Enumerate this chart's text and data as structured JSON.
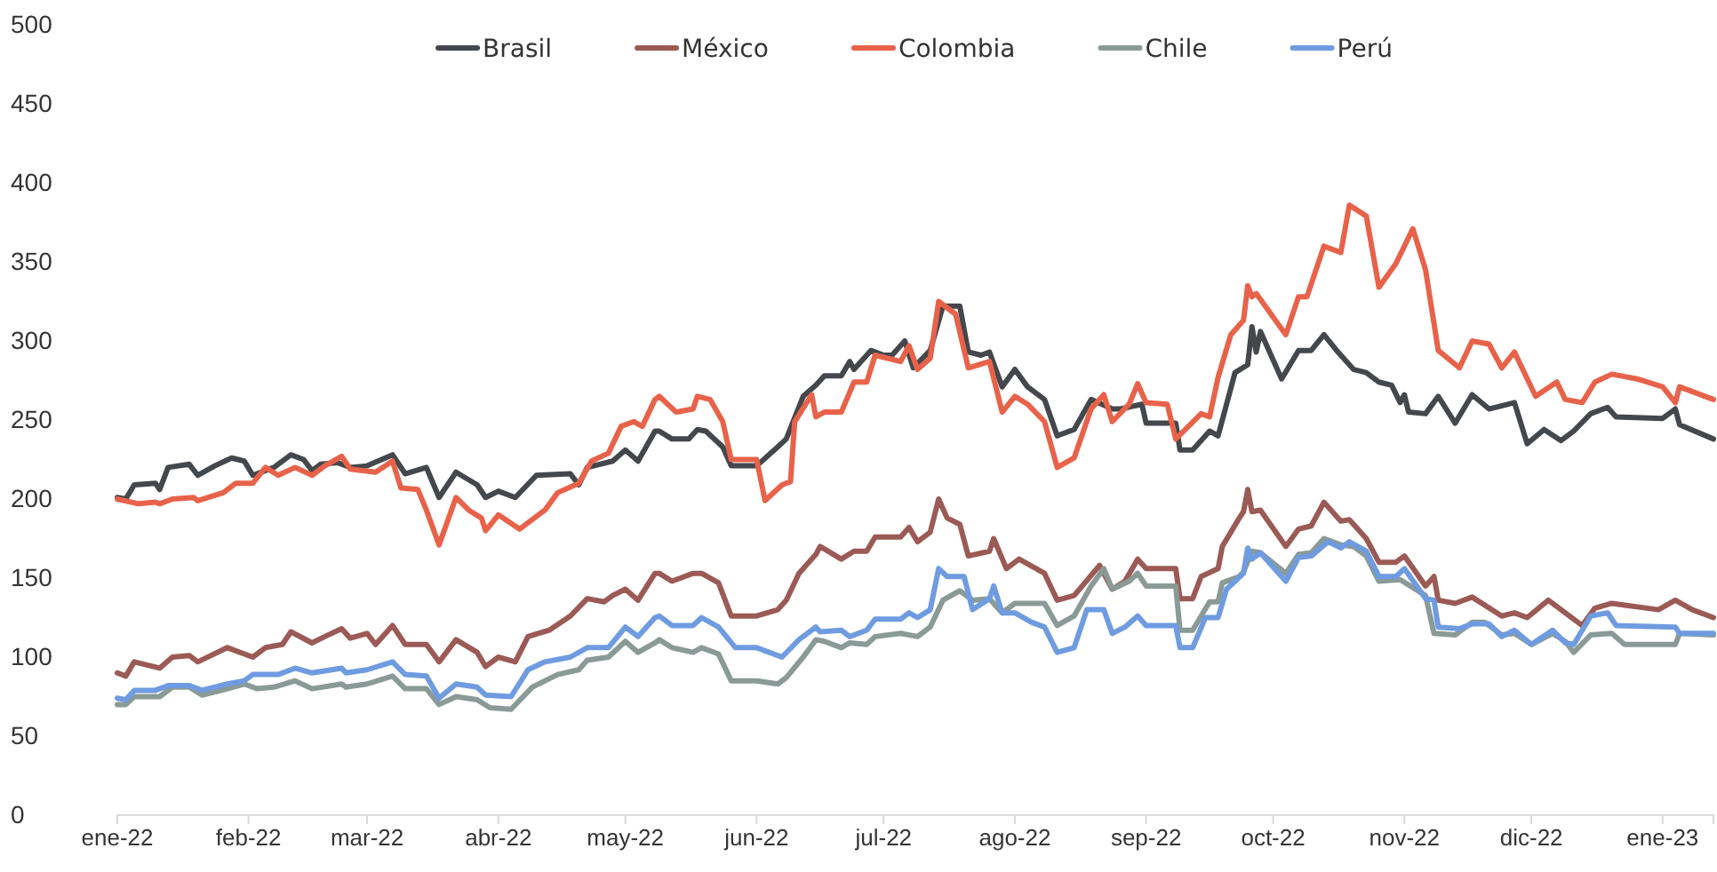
{
  "chart_data": {
    "type": "line",
    "legend": "top",
    "grid": false,
    "line_style": "solid",
    "marker": "none",
    "xlim": [
      "2022-01-01",
      "2023-01-13"
    ],
    "xticks": [
      {
        "value": "2022-01-01",
        "label": "ene-22"
      },
      {
        "value": "2022-02-01",
        "label": "feb-22"
      },
      {
        "value": "2022-03-01",
        "label": "mar-22"
      },
      {
        "value": "2022-04-01",
        "label": "abr-22"
      },
      {
        "value": "2022-05-01",
        "label": "may-22"
      },
      {
        "value": "2022-06-01",
        "label": "jun-22"
      },
      {
        "value": "2022-07-01",
        "label": "jul-22"
      },
      {
        "value": "2022-08-01",
        "label": "ago-22"
      },
      {
        "value": "2022-09-01",
        "label": "sep-22"
      },
      {
        "value": "2022-10-01",
        "label": "oct-22"
      },
      {
        "value": "2022-11-01",
        "label": "nov-22"
      },
      {
        "value": "2022-12-01",
        "label": "dic-22"
      },
      {
        "value": "2023-01-01",
        "label": "ene-23"
      }
    ],
    "ylim": [
      0,
      500
    ],
    "yticks": [
      0,
      50,
      100,
      150,
      200,
      250,
      300,
      350,
      400,
      450,
      500
    ],
    "series": [
      {
        "name": "Brasil",
        "color": "#44474b",
        "x": [
          "2022-01-01",
          "2022-01-03",
          "2022-01-05",
          "2022-01-10",
          "2022-01-11",
          "2022-01-13",
          "2022-01-18",
          "2022-01-20",
          "2022-01-24",
          "2022-01-28",
          "2022-01-31",
          "2022-02-02",
          "2022-02-07",
          "2022-02-11",
          "2022-02-14",
          "2022-02-16",
          "2022-02-18",
          "2022-02-22",
          "2022-02-25",
          "2022-03-01",
          "2022-03-07",
          "2022-03-10",
          "2022-03-15",
          "2022-03-18",
          "2022-03-22",
          "2022-03-27",
          "2022-03-29",
          "2022-04-01",
          "2022-04-05",
          "2022-04-10",
          "2022-04-18",
          "2022-04-20",
          "2022-04-22",
          "2022-04-28",
          "2022-05-01",
          "2022-05-04",
          "2022-05-08",
          "2022-05-09",
          "2022-05-12",
          "2022-05-16",
          "2022-05-18",
          "2022-05-20",
          "2022-05-24",
          "2022-05-26",
          "2022-06-01",
          "2022-06-06",
          "2022-06-08",
          "2022-06-12",
          "2022-06-15",
          "2022-06-17",
          "2022-06-21",
          "2022-06-23",
          "2022-06-24",
          "2022-06-28",
          "2022-07-01",
          "2022-07-03",
          "2022-07-06",
          "2022-07-08",
          "2022-07-12",
          "2022-07-15",
          "2022-07-19",
          "2022-07-21",
          "2022-07-24",
          "2022-07-26",
          "2022-07-29",
          "2022-08-01",
          "2022-08-04",
          "2022-08-08",
          "2022-08-11",
          "2022-08-15",
          "2022-08-19",
          "2022-08-24",
          "2022-08-26",
          "2022-08-31",
          "2022-09-01",
          "2022-09-08",
          "2022-09-09",
          "2022-09-12",
          "2022-09-16",
          "2022-09-18",
          "2022-09-22",
          "2022-09-25",
          "2022-09-26",
          "2022-09-27",
          "2022-09-28",
          "2022-10-03",
          "2022-10-07",
          "2022-10-10",
          "2022-10-13",
          "2022-10-16",
          "2022-10-20",
          "2022-10-23",
          "2022-10-26",
          "2022-10-29",
          "2022-10-31",
          "2022-11-01",
          "2022-11-02",
          "2022-11-06",
          "2022-11-09",
          "2022-11-13",
          "2022-11-17",
          "2022-11-21",
          "2022-11-27",
          "2022-11-30",
          "2022-12-04",
          "2022-12-08",
          "2022-12-11",
          "2022-12-15",
          "2022-12-19",
          "2022-12-21",
          "2023-01-01",
          "2023-01-04",
          "2023-01-05",
          "2023-01-13"
        ],
        "values": [
          201,
          200,
          209,
          210,
          206,
          220,
          222,
          215,
          221,
          226,
          224,
          215,
          220,
          228,
          225,
          218,
          222,
          223,
          220,
          221,
          228,
          216,
          220,
          201,
          217,
          209,
          201,
          205,
          201,
          215,
          216,
          209,
          220,
          224,
          231,
          224,
          243,
          243,
          238,
          238,
          244,
          243,
          233,
          221,
          221,
          233,
          238,
          265,
          272,
          278,
          278,
          287,
          282,
          294,
          291,
          291,
          300,
          283,
          294,
          322,
          322,
          293,
          291,
          293,
          271,
          282,
          271,
          263,
          240,
          244,
          263,
          257,
          257,
          260,
          248,
          248,
          231,
          231,
          243,
          240,
          280,
          285,
          309,
          293,
          306,
          276,
          294,
          294,
          304,
          294,
          282,
          280,
          274,
          272,
          261,
          266,
          255,
          254,
          265,
          248,
          266,
          257,
          261,
          235,
          244,
          237,
          243,
          254,
          258,
          252,
          251,
          257,
          247,
          238
        ]
      },
      {
        "name": "México",
        "color": "#9b5a55",
        "x": [
          "2022-01-01",
          "2022-01-03",
          "2022-01-05",
          "2022-01-11",
          "2022-01-14",
          "2022-01-18",
          "2022-01-20",
          "2022-01-27",
          "2022-02-02",
          "2022-02-05",
          "2022-02-09",
          "2022-02-11",
          "2022-02-16",
          "2022-02-19",
          "2022-02-23",
          "2022-02-25",
          "2022-03-01",
          "2022-03-03",
          "2022-03-07",
          "2022-03-10",
          "2022-03-15",
          "2022-03-18",
          "2022-03-22",
          "2022-03-27",
          "2022-03-29",
          "2022-04-01",
          "2022-04-05",
          "2022-04-08",
          "2022-04-13",
          "2022-04-18",
          "2022-04-22",
          "2022-04-26",
          "2022-04-28",
          "2022-05-01",
          "2022-05-04",
          "2022-05-08",
          "2022-05-09",
          "2022-05-12",
          "2022-05-17",
          "2022-05-19",
          "2022-05-23",
          "2022-05-26",
          "2022-06-01",
          "2022-06-06",
          "2022-06-08",
          "2022-06-11",
          "2022-06-15",
          "2022-06-16",
          "2022-06-21",
          "2022-06-24",
          "2022-06-27",
          "2022-06-29",
          "2022-07-05",
          "2022-07-07",
          "2022-07-09",
          "2022-07-12",
          "2022-07-14",
          "2022-07-16",
          "2022-07-19",
          "2022-07-21",
          "2022-07-26",
          "2022-07-27",
          "2022-07-30",
          "2022-08-02",
          "2022-08-08",
          "2022-08-11",
          "2022-08-15",
          "2022-08-21",
          "2022-08-24",
          "2022-08-27",
          "2022-08-30",
          "2022-09-01",
          "2022-09-08",
          "2022-09-09",
          "2022-09-12",
          "2022-09-14",
          "2022-09-18",
          "2022-09-19",
          "2022-09-23",
          "2022-09-24",
          "2022-09-25",
          "2022-09-26",
          "2022-09-28",
          "2022-10-04",
          "2022-10-07",
          "2022-10-10",
          "2022-10-13",
          "2022-10-17",
          "2022-10-19",
          "2022-10-23",
          "2022-10-26",
          "2022-10-30",
          "2022-11-01",
          "2022-11-06",
          "2022-11-08",
          "2022-11-09",
          "2022-11-13",
          "2022-11-17",
          "2022-11-24",
          "2022-11-27",
          "2022-11-30",
          "2022-12-05",
          "2022-12-09",
          "2022-12-13",
          "2022-12-16",
          "2022-12-20",
          "2022-12-31",
          "2023-01-04",
          "2023-01-08",
          "2023-01-13"
        ],
        "values": [
          90,
          88,
          97,
          93,
          100,
          101,
          97,
          106,
          100,
          106,
          108,
          116,
          109,
          113,
          118,
          112,
          115,
          108,
          120,
          108,
          108,
          97,
          111,
          103,
          94,
          100,
          97,
          113,
          117,
          126,
          137,
          135,
          139,
          143,
          136,
          153,
          153,
          148,
          153,
          153,
          147,
          126,
          126,
          130,
          136,
          153,
          165,
          170,
          162,
          167,
          167,
          176,
          176,
          182,
          173,
          179,
          200,
          188,
          184,
          164,
          167,
          175,
          156,
          162,
          153,
          136,
          139,
          158,
          143,
          148,
          162,
          156,
          156,
          137,
          137,
          151,
          156,
          170,
          188,
          192,
          206,
          192,
          193,
          170,
          181,
          183,
          198,
          186,
          187,
          175,
          160,
          160,
          164,
          145,
          151,
          136,
          134,
          138,
          126,
          128,
          125,
          136,
          128,
          120,
          131,
          134,
          130,
          136,
          130,
          125
        ]
      },
      {
        "name": "Colombia",
        "color": "#e8624a",
        "x": [
          "2022-01-01",
          "2022-01-06",
          "2022-01-10",
          "2022-01-11",
          "2022-01-14",
          "2022-01-19",
          "2022-01-20",
          "2022-01-26",
          "2022-01-29",
          "2022-02-02",
          "2022-02-05",
          "2022-02-08",
          "2022-02-12",
          "2022-02-16",
          "2022-02-19",
          "2022-02-23",
          "2022-02-25",
          "2022-03-03",
          "2022-03-07",
          "2022-03-09",
          "2022-03-13",
          "2022-03-15",
          "2022-03-18",
          "2022-03-22",
          "2022-03-25",
          "2022-03-28",
          "2022-03-29",
          "2022-04-01",
          "2022-04-06",
          "2022-04-09",
          "2022-04-12",
          "2022-04-15",
          "2022-04-20",
          "2022-04-23",
          "2022-04-27",
          "2022-04-30",
          "2022-05-03",
          "2022-05-05",
          "2022-05-08",
          "2022-05-09",
          "2022-05-13",
          "2022-05-17",
          "2022-05-18",
          "2022-05-21",
          "2022-05-24",
          "2022-05-26",
          "2022-06-01",
          "2022-06-03",
          "2022-06-07",
          "2022-06-09",
          "2022-06-10",
          "2022-06-14",
          "2022-06-15",
          "2022-06-17",
          "2022-06-21",
          "2022-06-24",
          "2022-06-27",
          "2022-06-29",
          "2022-07-05",
          "2022-07-07",
          "2022-07-09",
          "2022-07-12",
          "2022-07-14",
          "2022-07-18",
          "2022-07-21",
          "2022-07-26",
          "2022-07-29",
          "2022-08-01",
          "2022-08-04",
          "2022-08-08",
          "2022-08-11",
          "2022-08-15",
          "2022-08-19",
          "2022-08-22",
          "2022-08-24",
          "2022-08-28",
          "2022-08-30",
          "2022-09-01",
          "2022-09-06",
          "2022-09-08",
          "2022-09-14",
          "2022-09-16",
          "2022-09-18",
          "2022-09-21",
          "2022-09-24",
          "2022-09-25",
          "2022-09-26",
          "2022-09-27",
          "2022-10-04",
          "2022-10-07",
          "2022-10-09",
          "2022-10-13",
          "2022-10-17",
          "2022-10-19",
          "2022-10-23",
          "2022-10-26",
          "2022-10-30",
          "2022-11-03",
          "2022-11-06",
          "2022-11-09",
          "2022-11-14",
          "2022-11-17",
          "2022-11-21",
          "2022-11-24",
          "2022-11-27",
          "2022-12-02",
          "2022-12-07",
          "2022-12-09",
          "2022-12-13",
          "2022-12-16",
          "2022-12-20",
          "2022-12-26",
          "2023-01-01",
          "2023-01-04",
          "2023-01-05",
          "2023-01-13"
        ],
        "values": [
          200,
          197,
          198,
          197,
          200,
          201,
          199,
          204,
          210,
          210,
          220,
          215,
          220,
          215,
          221,
          227,
          219,
          217,
          224,
          207,
          206,
          193,
          171,
          201,
          193,
          188,
          180,
          190,
          181,
          187,
          193,
          204,
          210,
          224,
          229,
          246,
          249,
          246,
          263,
          265,
          255,
          257,
          265,
          263,
          249,
          225,
          225,
          199,
          209,
          211,
          249,
          266,
          252,
          255,
          255,
          274,
          274,
          291,
          287,
          297,
          282,
          289,
          325,
          317,
          283,
          287,
          255,
          265,
          260,
          249,
          220,
          226,
          257,
          266,
          249,
          260,
          273,
          261,
          260,
          238,
          254,
          252,
          277,
          304,
          313,
          335,
          328,
          330,
          304,
          328,
          328,
          360,
          356,
          386,
          379,
          334,
          349,
          371,
          345,
          294,
          283,
          300,
          298,
          283,
          293,
          265,
          274,
          263,
          261,
          274,
          279,
          276,
          271,
          261,
          271,
          263
        ]
      },
      {
        "name": "Chile",
        "color": "#8a9a96",
        "x": [
          "2022-01-01",
          "2022-01-03",
          "2022-01-05",
          "2022-01-11",
          "2022-01-14",
          "2022-01-18",
          "2022-01-21",
          "2022-01-27",
          "2022-01-31",
          "2022-02-03",
          "2022-02-07",
          "2022-02-12",
          "2022-02-16",
          "2022-02-23",
          "2022-02-24",
          "2022-03-01",
          "2022-03-07",
          "2022-03-10",
          "2022-03-15",
          "2022-03-18",
          "2022-03-22",
          "2022-03-27",
          "2022-03-30",
          "2022-04-04",
          "2022-04-09",
          "2022-04-15",
          "2022-04-20",
          "2022-04-22",
          "2022-04-27",
          "2022-05-01",
          "2022-05-04",
          "2022-05-08",
          "2022-05-09",
          "2022-05-12",
          "2022-05-17",
          "2022-05-19",
          "2022-05-23",
          "2022-05-26",
          "2022-06-01",
          "2022-06-06",
          "2022-06-08",
          "2022-06-12",
          "2022-06-15",
          "2022-06-17",
          "2022-06-21",
          "2022-06-23",
          "2022-06-27",
          "2022-06-29",
          "2022-07-05",
          "2022-07-09",
          "2022-07-12",
          "2022-07-15",
          "2022-07-19",
          "2022-07-22",
          "2022-07-26",
          "2022-07-29",
          "2022-08-01",
          "2022-08-05",
          "2022-08-08",
          "2022-08-11",
          "2022-08-15",
          "2022-08-19",
          "2022-08-22",
          "2022-08-24",
          "2022-08-28",
          "2022-08-30",
          "2022-09-01",
          "2022-09-08",
          "2022-09-09",
          "2022-09-12",
          "2022-09-16",
          "2022-09-18",
          "2022-09-19",
          "2022-09-23",
          "2022-09-24",
          "2022-09-26",
          "2022-09-28",
          "2022-10-04",
          "2022-10-07",
          "2022-10-10",
          "2022-10-13",
          "2022-10-17",
          "2022-10-20",
          "2022-10-23",
          "2022-10-26",
          "2022-10-31",
          "2022-11-06",
          "2022-11-08",
          "2022-11-13",
          "2022-11-17",
          "2022-11-20",
          "2022-11-24",
          "2022-11-27",
          "2022-12-01",
          "2022-12-06",
          "2022-12-09",
          "2022-12-11",
          "2022-12-15",
          "2022-12-20",
          "2022-12-23",
          "2023-01-04",
          "2023-01-05",
          "2023-01-13"
        ],
        "values": [
          70,
          70,
          75,
          75,
          81,
          81,
          76,
          80,
          83,
          80,
          81,
          85,
          80,
          83,
          81,
          83,
          88,
          80,
          80,
          70,
          75,
          73,
          68,
          67,
          81,
          89,
          92,
          98,
          100,
          110,
          103,
          109,
          111,
          106,
          103,
          106,
          102,
          85,
          85,
          83,
          87,
          100,
          111,
          110,
          106,
          109,
          108,
          113,
          115,
          113,
          119,
          136,
          142,
          136,
          137,
          128,
          134,
          134,
          134,
          120,
          126,
          145,
          156,
          143,
          148,
          153,
          145,
          145,
          117,
          117,
          135,
          135,
          147,
          151,
          154,
          167,
          166,
          153,
          165,
          166,
          175,
          171,
          170,
          164,
          148,
          149,
          139,
          115,
          114,
          122,
          122,
          114,
          115,
          108,
          115,
          110,
          103,
          114,
          115,
          108,
          108,
          115,
          114
        ]
      },
      {
        "name": "Perú",
        "color": "#6f9be0",
        "x": [
          "2022-01-01",
          "2022-01-03",
          "2022-01-05",
          "2022-01-10",
          "2022-01-13",
          "2022-01-18",
          "2022-01-21",
          "2022-01-27",
          "2022-01-31",
          "2022-02-02",
          "2022-02-05",
          "2022-02-08",
          "2022-02-12",
          "2022-02-16",
          "2022-02-23",
          "2022-02-24",
          "2022-03-01",
          "2022-03-07",
          "2022-03-10",
          "2022-03-15",
          "2022-03-18",
          "2022-03-22",
          "2022-03-27",
          "2022-03-29",
          "2022-04-04",
          "2022-04-08",
          "2022-04-12",
          "2022-04-18",
          "2022-04-22",
          "2022-04-27",
          "2022-05-01",
          "2022-05-04",
          "2022-05-08",
          "2022-05-09",
          "2022-05-12",
          "2022-05-17",
          "2022-05-19",
          "2022-05-23",
          "2022-05-27",
          "2022-06-01",
          "2022-06-07",
          "2022-06-11",
          "2022-06-15",
          "2022-06-16",
          "2022-06-21",
          "2022-06-23",
          "2022-06-27",
          "2022-06-29",
          "2022-07-05",
          "2022-07-07",
          "2022-07-09",
          "2022-07-12",
          "2022-07-14",
          "2022-07-16",
          "2022-07-20",
          "2022-07-22",
          "2022-07-26",
          "2022-07-27",
          "2022-07-29",
          "2022-08-01",
          "2022-08-05",
          "2022-08-08",
          "2022-08-11",
          "2022-08-15",
          "2022-08-18",
          "2022-08-22",
          "2022-08-24",
          "2022-08-27",
          "2022-08-30",
          "2022-09-01",
          "2022-09-08",
          "2022-09-09",
          "2022-09-12",
          "2022-09-15",
          "2022-09-18",
          "2022-09-20",
          "2022-09-24",
          "2022-09-25",
          "2022-09-26",
          "2022-09-28",
          "2022-10-04",
          "2022-10-07",
          "2022-10-10",
          "2022-10-14",
          "2022-10-17",
          "2022-10-19",
          "2022-10-23",
          "2022-10-26",
          "2022-10-30",
          "2022-11-01",
          "2022-11-06",
          "2022-11-08",
          "2022-11-09",
          "2022-11-14",
          "2022-11-17",
          "2022-11-21",
          "2022-11-24",
          "2022-11-27",
          "2022-12-01",
          "2022-12-06",
          "2022-12-09",
          "2022-12-11",
          "2022-12-15",
          "2022-12-19",
          "2022-12-21",
          "2023-01-04",
          "2023-01-05",
          "2023-01-13"
        ],
        "values": [
          74,
          73,
          79,
          79,
          82,
          82,
          79,
          83,
          85,
          89,
          89,
          89,
          93,
          90,
          93,
          90,
          92,
          97,
          89,
          88,
          74,
          83,
          81,
          76,
          75,
          92,
          97,
          100,
          106,
          106,
          119,
          113,
          125,
          126,
          120,
          120,
          125,
          119,
          106,
          106,
          100,
          111,
          119,
          116,
          117,
          113,
          117,
          124,
          124,
          128,
          125,
          130,
          156,
          151,
          151,
          130,
          137,
          145,
          128,
          128,
          122,
          119,
          103,
          106,
          130,
          130,
          115,
          119,
          126,
          120,
          120,
          106,
          106,
          125,
          125,
          143,
          153,
          169,
          162,
          166,
          148,
          163,
          164,
          173,
          169,
          173,
          167,
          151,
          151,
          156,
          137,
          136,
          119,
          118,
          121,
          121,
          113,
          117,
          108,
          117,
          109,
          108,
          126,
          128,
          120,
          119,
          115,
          115
        ]
      }
    ]
  }
}
